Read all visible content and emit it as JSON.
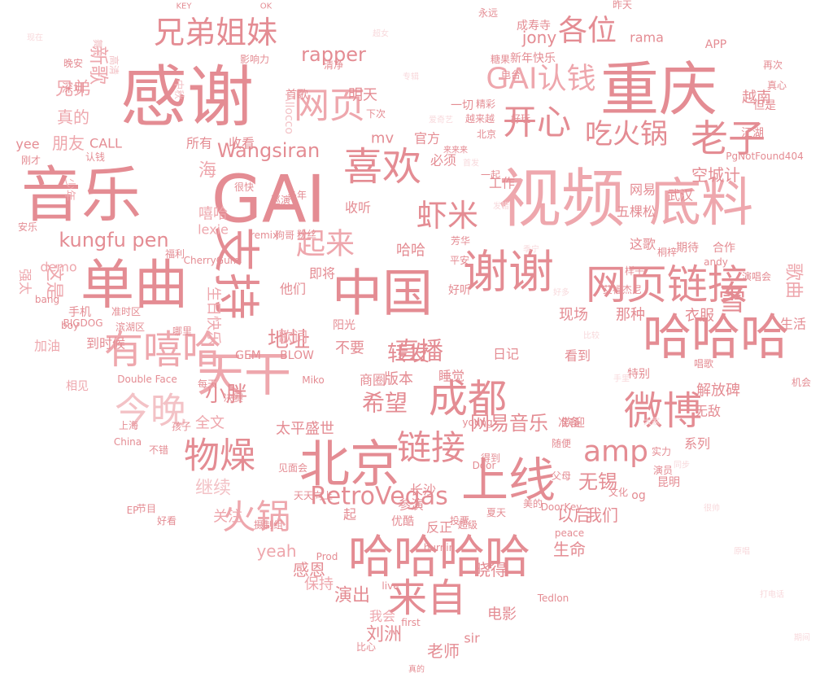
{
  "colors": [
    "#e48c93",
    "#eea7ad",
    "#f3c2c6",
    "#f8d9dc",
    "#ecb5ba"
  ],
  "words": [
    "感谢",
    "音乐",
    "GAI",
    "视频",
    "重庆",
    "底料",
    "单曲",
    "支持",
    "中国",
    "谢谢",
    "网页链接",
    "哈哈哈",
    "天干",
    "北京",
    "上线",
    "哈哈哈哈",
    "有嘻哈",
    "今晚",
    "成都",
    "微博",
    "来自",
    "物燥",
    "火锅",
    "链接",
    "喜欢",
    "老子",
    "开心",
    "吃火锅",
    "兄弟姐妹",
    "网页",
    "各位",
    "GAI认钱",
    "虾米",
    "起来",
    "kungfu pen",
    "Wangsiran",
    "rapper",
    "直播",
    "转发",
    "希望",
    "地址",
    "小胖",
    "RetroVegas",
    "amp",
    "歌曲",
    "网易音乐",
    "无锡",
    "空城计",
    "越南",
    "太平盛世",
    "长沙",
    "继续",
    "关注",
    "全文",
    "感恩",
    "演出",
    "晓得",
    "电影",
    "老师",
    "刘洲",
    "生命",
    "以后",
    "我们",
    "雪",
    "海",
    "嘻哈",
    "歌词",
    "他们",
    "即将",
    "收听",
    "不要",
    "商圈",
    "哈哈",
    "版本",
    "睡觉",
    "日记",
    "现场",
    "那种",
    "衣服",
    "生活",
    "五棵松",
    "这歌",
    "武汉",
    "网易",
    "工作",
    "必须",
    "官方",
    "明天",
    "首歌",
    "新歌",
    "兄弟",
    "朋友",
    "真的",
    "所有",
    "收看",
    "mv",
    "jony",
    "yeah",
    "yee",
    "demo",
    "lexie",
    "GEM",
    "BLOW",
    "Allocco",
    "CALL",
    "认钱",
    "看到",
    "期待",
    "合作",
    "解放碑",
    "无敌",
    "系列",
    "昆明",
    "og",
    "sir",
    "保持",
    "我会",
    "反正",
    "参演",
    "起",
    "优酷",
    "超级",
    "好听",
    "阳光",
    "手机",
    "到时候",
    "相见",
    "加油",
    "这是",
    "强太",
    "生日快乐",
    "特别",
    "准备",
    "欢迎",
    "一切",
    "精彩",
    "成寿寺",
    "新年快乐",
    "rama",
    "APP",
    "但是",
    "江湖",
    "真心",
    "昨天",
    "深圳",
    "平安",
    "芳华",
    "哪里",
    "孩子",
    "决赛",
    "每天",
    "巡演",
    "很快",
    "粉丝",
    "狗哥",
    "remix",
    "福利",
    "China",
    "Double Face",
    "Miko",
    "young",
    "Door",
    "DoorKey",
    "live",
    "投票",
    "夏天",
    "美的",
    "随便",
    "文化",
    "实力",
    "唱歌",
    "得到",
    "永远",
    "真的",
    "晚安",
    "影响力",
    "清净",
    "下次",
    "多年",
    "糖果",
    "再次",
    "演唱会",
    "机会",
    "节目",
    "好看",
    "越来越",
    "北京",
    "上海",
    "不错",
    "好玩",
    "电台",
    "摄制组",
    "见面会",
    "天天向上",
    "准时区",
    "滨湖区",
    "少年",
    "安乐",
    "刚才",
    "一起",
    "来来来",
    "演员",
    "父母",
    "桐梓",
    "艾福杰尼",
    "样子",
    "KEY",
    "OK",
    "舞台",
    "高清",
    "中秋",
    "比心",
    "first",
    "Prod",
    "burnin",
    "EP",
    "BIGDOG",
    "boy",
    "bang",
    "PgNotFound404",
    "andy",
    "CherryGum",
    "peace",
    "Tedlon",
    "超女",
    "专辑",
    "爱奇艺",
    "首发",
    "发错",
    "季宁",
    "好多",
    "比较",
    "手里",
    "大家",
    "同步",
    "很帅",
    "原唱",
    "打电话",
    "期间",
    "现在"
  ]
}
